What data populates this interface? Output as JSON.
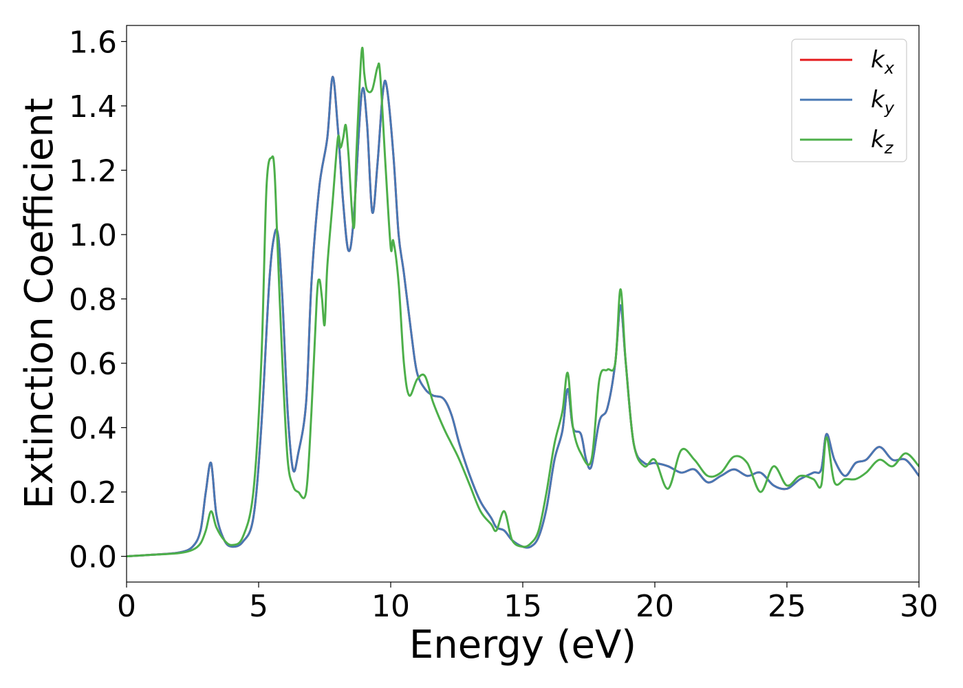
{
  "chart_data": {
    "type": "line",
    "xlabel": "Energy (eV)",
    "ylabel": "Extinction Coefficient",
    "xlim": [
      0,
      30
    ],
    "ylim": [
      -0.08,
      1.65
    ],
    "xticks": [
      "0",
      "5",
      "10",
      "15",
      "20",
      "25",
      "30"
    ],
    "yticks": [
      "0.0",
      "0.2",
      "0.4",
      "0.6",
      "0.8",
      "1.0",
      "1.2",
      "1.4",
      "1.6"
    ],
    "grid": false,
    "legend_position": "top-right",
    "series": [
      {
        "name": "k",
        "sub": "x",
        "color": "#e41a1c",
        "x": [
          0,
          1,
          2,
          2.5,
          2.8,
          3.0,
          3.2,
          3.4,
          3.7,
          4.0,
          4.4,
          4.8,
          5.1,
          5.4,
          5.6,
          5.75,
          5.9,
          6.1,
          6.3,
          6.5,
          6.8,
          7.0,
          7.3,
          7.6,
          7.8,
          8.0,
          8.2,
          8.4,
          8.6,
          8.9,
          9.1,
          9.3,
          9.5,
          9.7,
          9.85,
          10.1,
          10.3,
          10.5,
          10.8,
          11.0,
          11.3,
          11.6,
          12.0,
          12.3,
          12.6,
          13.0,
          13.4,
          13.8,
          14.0,
          14.3,
          14.6,
          15.0,
          15.3,
          15.6,
          15.9,
          16.2,
          16.5,
          16.7,
          16.9,
          17.2,
          17.4,
          17.6,
          17.9,
          18.2,
          18.5,
          18.7,
          18.9,
          19.2,
          19.6,
          20.0,
          20.5,
          21.0,
          21.5,
          22.0,
          22.5,
          23.0,
          23.5,
          24.0,
          24.5,
          25.0,
          25.5,
          26.0,
          26.3,
          26.5,
          26.8,
          27.2,
          27.6,
          28.0,
          28.5,
          29.0,
          29.5,
          30.0
        ],
        "y": [
          0.0,
          0.005,
          0.012,
          0.03,
          0.08,
          0.2,
          0.29,
          0.13,
          0.05,
          0.03,
          0.045,
          0.12,
          0.4,
          0.85,
          1.0,
          0.99,
          0.8,
          0.45,
          0.27,
          0.32,
          0.48,
          0.85,
          1.15,
          1.3,
          1.49,
          1.33,
          1.1,
          0.95,
          1.05,
          1.44,
          1.35,
          1.07,
          1.22,
          1.44,
          1.46,
          1.25,
          1.0,
          0.88,
          0.68,
          0.57,
          0.52,
          0.5,
          0.49,
          0.44,
          0.35,
          0.25,
          0.17,
          0.12,
          0.09,
          0.08,
          0.05,
          0.03,
          0.03,
          0.06,
          0.15,
          0.3,
          0.39,
          0.52,
          0.4,
          0.38,
          0.3,
          0.28,
          0.42,
          0.46,
          0.6,
          0.78,
          0.6,
          0.35,
          0.29,
          0.29,
          0.28,
          0.26,
          0.27,
          0.23,
          0.25,
          0.27,
          0.25,
          0.26,
          0.22,
          0.21,
          0.24,
          0.26,
          0.27,
          0.38,
          0.3,
          0.25,
          0.29,
          0.3,
          0.34,
          0.3,
          0.3,
          0.25
        ]
      },
      {
        "name": "k",
        "sub": "y",
        "color": "#4878b4",
        "x": [
          0,
          1,
          2,
          2.5,
          2.8,
          3.0,
          3.2,
          3.4,
          3.7,
          4.0,
          4.4,
          4.8,
          5.1,
          5.4,
          5.6,
          5.75,
          5.9,
          6.1,
          6.3,
          6.5,
          6.8,
          7.0,
          7.3,
          7.6,
          7.8,
          8.0,
          8.2,
          8.4,
          8.6,
          8.9,
          9.1,
          9.3,
          9.5,
          9.7,
          9.85,
          10.1,
          10.3,
          10.5,
          10.8,
          11.0,
          11.3,
          11.6,
          12.0,
          12.3,
          12.6,
          13.0,
          13.4,
          13.8,
          14.0,
          14.3,
          14.6,
          15.0,
          15.3,
          15.6,
          15.9,
          16.2,
          16.5,
          16.7,
          16.9,
          17.2,
          17.4,
          17.6,
          17.9,
          18.2,
          18.5,
          18.7,
          18.9,
          19.2,
          19.6,
          20.0,
          20.5,
          21.0,
          21.5,
          22.0,
          22.5,
          23.0,
          23.5,
          24.0,
          24.5,
          25.0,
          25.5,
          26.0,
          26.3,
          26.5,
          26.8,
          27.2,
          27.6,
          28.0,
          28.5,
          29.0,
          29.5,
          30.0
        ],
        "y": [
          0.0,
          0.005,
          0.012,
          0.03,
          0.08,
          0.2,
          0.29,
          0.13,
          0.05,
          0.03,
          0.045,
          0.12,
          0.4,
          0.85,
          1.0,
          0.99,
          0.8,
          0.45,
          0.27,
          0.32,
          0.48,
          0.85,
          1.15,
          1.3,
          1.49,
          1.33,
          1.1,
          0.95,
          1.05,
          1.44,
          1.35,
          1.07,
          1.22,
          1.44,
          1.46,
          1.25,
          1.0,
          0.88,
          0.68,
          0.57,
          0.52,
          0.5,
          0.49,
          0.44,
          0.35,
          0.25,
          0.17,
          0.12,
          0.09,
          0.08,
          0.05,
          0.03,
          0.03,
          0.06,
          0.15,
          0.3,
          0.39,
          0.52,
          0.4,
          0.38,
          0.3,
          0.28,
          0.42,
          0.46,
          0.6,
          0.78,
          0.6,
          0.35,
          0.29,
          0.29,
          0.28,
          0.26,
          0.27,
          0.23,
          0.25,
          0.27,
          0.25,
          0.26,
          0.22,
          0.21,
          0.24,
          0.26,
          0.27,
          0.38,
          0.3,
          0.25,
          0.29,
          0.3,
          0.34,
          0.3,
          0.3,
          0.25
        ]
      },
      {
        "name": "k",
        "sub": "z",
        "color": "#4daf4a",
        "x": [
          0,
          1,
          2,
          2.5,
          2.8,
          3.0,
          3.2,
          3.4,
          3.7,
          4.0,
          4.4,
          4.8,
          5.1,
          5.3,
          5.5,
          5.6,
          5.7,
          5.9,
          6.1,
          6.3,
          6.5,
          6.8,
          7.0,
          7.2,
          7.3,
          7.4,
          7.5,
          7.6,
          7.8,
          8.0,
          8.1,
          8.2,
          8.3,
          8.4,
          8.6,
          8.7,
          8.9,
          9.0,
          9.1,
          9.3,
          9.5,
          9.6,
          9.8,
          10.0,
          10.1,
          10.3,
          10.5,
          10.7,
          11.0,
          11.3,
          11.6,
          12.0,
          12.3,
          12.6,
          13.0,
          13.4,
          13.8,
          14.0,
          14.3,
          14.6,
          15.0,
          15.3,
          15.6,
          15.9,
          16.2,
          16.5,
          16.7,
          16.9,
          17.2,
          17.6,
          17.9,
          18.2,
          18.5,
          18.7,
          18.9,
          19.2,
          19.6,
          20.0,
          20.5,
          21.0,
          21.5,
          22.0,
          22.5,
          23.0,
          23.5,
          24.0,
          24.5,
          25.0,
          25.5,
          26.0,
          26.3,
          26.5,
          26.8,
          27.2,
          27.6,
          28.0,
          28.5,
          29.0,
          29.5,
          30.0
        ],
        "y": [
          0.0,
          0.005,
          0.01,
          0.02,
          0.04,
          0.08,
          0.14,
          0.09,
          0.05,
          0.035,
          0.06,
          0.2,
          0.6,
          1.15,
          1.24,
          1.2,
          1.0,
          0.6,
          0.3,
          0.22,
          0.2,
          0.2,
          0.45,
          0.8,
          0.86,
          0.8,
          0.72,
          0.9,
          1.1,
          1.3,
          1.27,
          1.3,
          1.34,
          1.25,
          1.02,
          1.25,
          1.57,
          1.5,
          1.45,
          1.45,
          1.52,
          1.5,
          1.22,
          0.96,
          0.98,
          0.85,
          0.6,
          0.5,
          0.55,
          0.56,
          0.48,
          0.4,
          0.35,
          0.3,
          0.22,
          0.14,
          0.1,
          0.08,
          0.14,
          0.05,
          0.03,
          0.04,
          0.08,
          0.2,
          0.35,
          0.45,
          0.57,
          0.4,
          0.32,
          0.3,
          0.55,
          0.58,
          0.6,
          0.83,
          0.6,
          0.35,
          0.28,
          0.3,
          0.21,
          0.33,
          0.3,
          0.25,
          0.26,
          0.31,
          0.29,
          0.2,
          0.28,
          0.22,
          0.25,
          0.24,
          0.22,
          0.37,
          0.23,
          0.24,
          0.24,
          0.26,
          0.3,
          0.28,
          0.32,
          0.28
        ]
      }
    ]
  }
}
